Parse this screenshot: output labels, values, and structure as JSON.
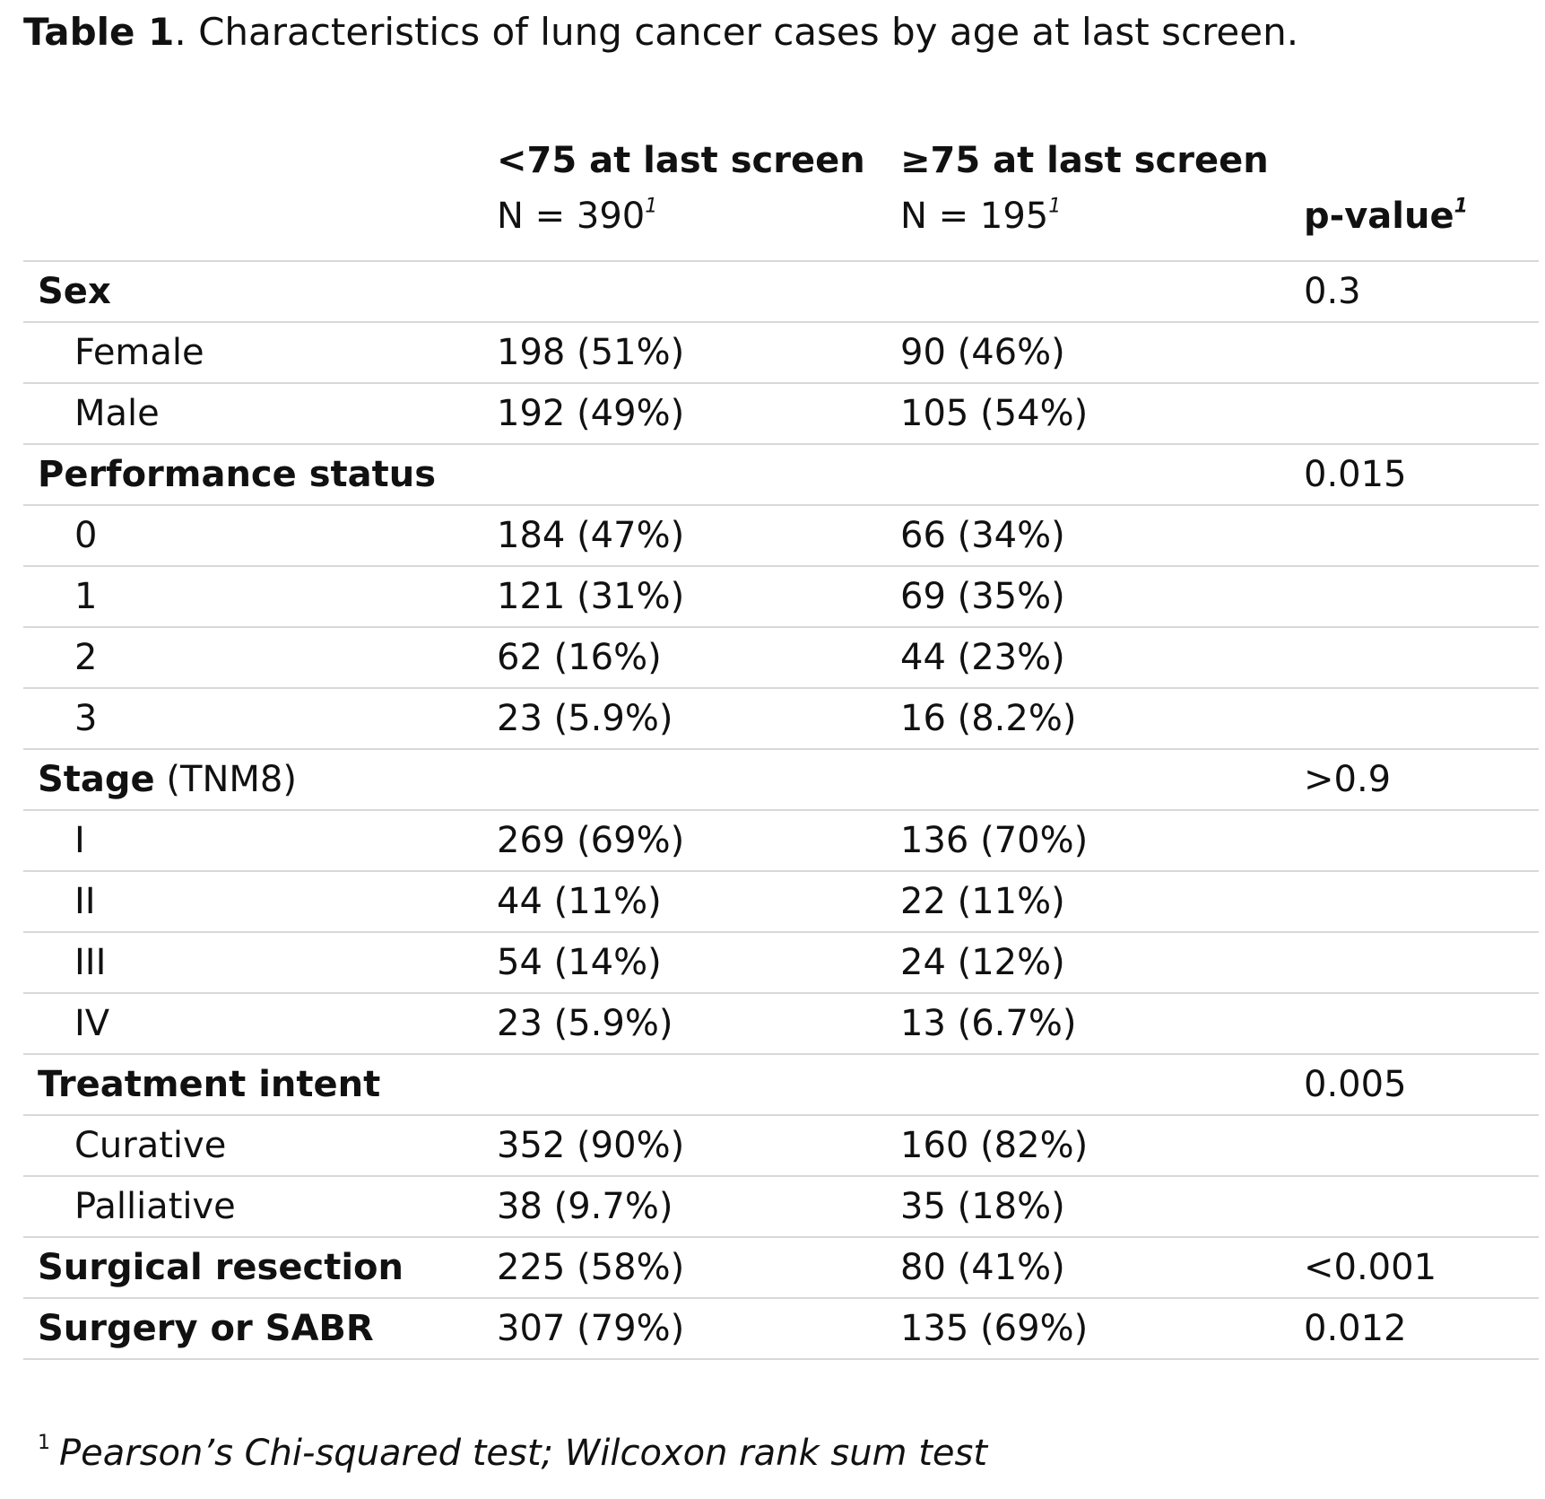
{
  "caption": {
    "lead": "Table 1",
    "text": ". Characteristics of lung cancer cases by age at last screen."
  },
  "header": {
    "group1_title": "<75 at last screen",
    "group1_n": "N = 390",
    "group2_title": "≥75 at last screen",
    "group2_n": "N = 195",
    "pvalue_label": "p-value",
    "footnote_marker": "1"
  },
  "rows": [
    {
      "label": "Sex",
      "bold": true,
      "c1": "",
      "c2": "",
      "p": "0.3"
    },
    {
      "label": "Female",
      "indent": true,
      "c1": "198 (51%)",
      "c2": "90 (46%)",
      "p": ""
    },
    {
      "label": "Male",
      "indent": true,
      "c1": "192 (49%)",
      "c2": "105 (54%)",
      "p": ""
    },
    {
      "label": "Performance status",
      "bold": true,
      "c1": "",
      "c2": "",
      "p": "0.015"
    },
    {
      "label": "0",
      "indent": true,
      "c1": "184 (47%)",
      "c2": "66 (34%)",
      "p": ""
    },
    {
      "label": "1",
      "indent": true,
      "c1": "121 (31%)",
      "c2": "69 (35%)",
      "p": ""
    },
    {
      "label": "2",
      "indent": true,
      "c1": "62 (16%)",
      "c2": "44 (23%)",
      "p": ""
    },
    {
      "label": "3",
      "indent": true,
      "c1": "23 (5.9%)",
      "c2": "16 (8.2%)",
      "p": ""
    },
    {
      "label": "Stage",
      "bold": true,
      "suffix": " (TNM8)",
      "c1": "",
      "c2": "",
      "p": ">0.9"
    },
    {
      "label": "I",
      "indent": true,
      "c1": "269 (69%)",
      "c2": "136 (70%)",
      "p": ""
    },
    {
      "label": "II",
      "indent": true,
      "c1": "44 (11%)",
      "c2": "22 (11%)",
      "p": ""
    },
    {
      "label": "III",
      "indent": true,
      "c1": "54 (14%)",
      "c2": "24 (12%)",
      "p": ""
    },
    {
      "label": "IV",
      "indent": true,
      "c1": "23 (5.9%)",
      "c2": "13 (6.7%)",
      "p": ""
    },
    {
      "label": "Treatment intent",
      "bold": true,
      "c1": "",
      "c2": "",
      "p": "0.005"
    },
    {
      "label": "Curative",
      "indent": true,
      "c1": "352 (90%)",
      "c2": "160 (82%)",
      "p": ""
    },
    {
      "label": "Palliative",
      "indent": true,
      "c1": "38 (9.7%)",
      "c2": "35 (18%)",
      "p": ""
    },
    {
      "label": "Surgical resection",
      "bold": true,
      "c1": "225 (58%)",
      "c2": "80 (41%)",
      "p": "<0.001"
    },
    {
      "label": "Surgery or SABR",
      "bold": true,
      "c1": "307 (79%)",
      "c2": "135 (69%)",
      "p": "0.012"
    }
  ],
  "footnote": {
    "marker": "1",
    "text": "Pearson’s Chi-squared test; Wilcoxon rank sum test"
  }
}
